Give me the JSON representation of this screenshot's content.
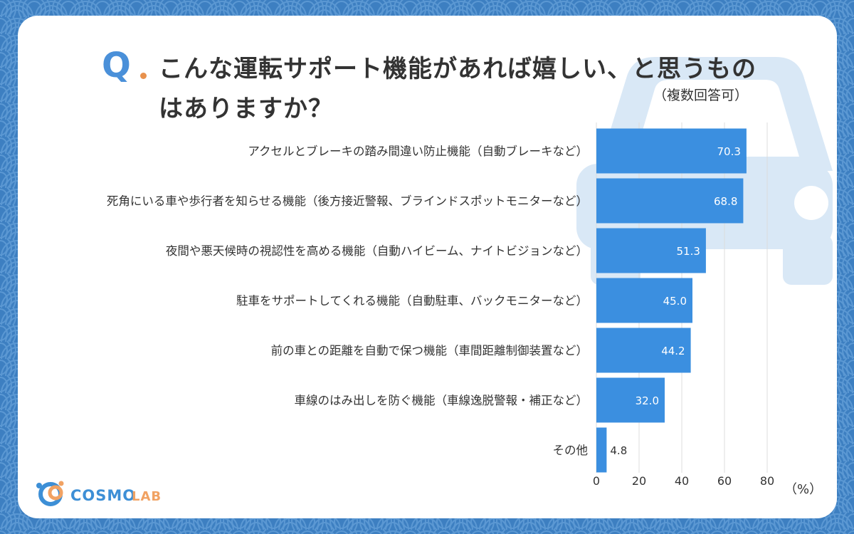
{
  "colors": {
    "background": "#3d7fc1",
    "bar": "#3b8fe0",
    "q_mark": "#4a90d9",
    "accent": "#e8914d",
    "car_watermark": "#d6e6f6",
    "text": "#333333"
  },
  "header": {
    "q_letter": "Q",
    "title": "こんな運転サポート機能があれば嬉しい、と思うものはありますか？",
    "note": "（複数回答可）"
  },
  "logo": {
    "text_main": "COSMO",
    "text_sub": "LAB"
  },
  "chart_data": {
    "type": "bar",
    "orientation": "horizontal",
    "categories": [
      "アクセルとブレーキの踏み間違い防止機能（自動ブレーキなど）",
      "死角にいる車や歩行者を知らせる機能（後方接近警報、ブラインドスポットモニターなど）",
      "夜間や悪天候時の視認性を高める機能（自動ハイビーム、ナイトビジョンなど）",
      "駐車をサポートしてくれる機能（自動駐車、バックモニターなど）",
      "前の車との距離を自動で保つ機能（車間距離制御装置など）",
      "車線のはみ出しを防ぐ機能（車線逸脱警報・補正など）",
      "その他"
    ],
    "values": [
      70.3,
      68.8,
      51.3,
      45.0,
      44.2,
      32.0,
      4.8
    ],
    "value_labels": [
      "70.3",
      "68.8",
      "51.3",
      "45.0",
      "44.2",
      "32.0",
      "4.8"
    ],
    "xlim": [
      0,
      80
    ],
    "xticks": [
      "0",
      "20",
      "40",
      "60",
      "80"
    ],
    "unit_label": "（%）",
    "grid": true
  }
}
